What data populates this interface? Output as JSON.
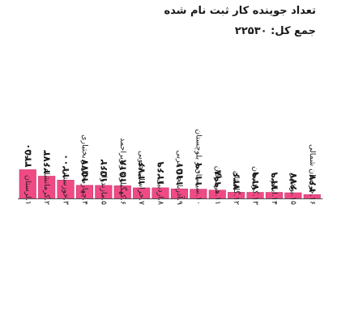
{
  "chart_data": {
    "type": "bar",
    "title": "تعداد جوینده کار ثبت نام شده",
    "subtitle": "جمع کل: ۲۲۵۳۰",
    "categories": [
      "۱.لرستان",
      "۲.کرمانشاه",
      "۳.خوزستان",
      "۴.چهارمحال و بختیاری",
      "۵.مازندران",
      "۶.کهگیلویه وبویراحمد",
      "۷.خراسان جنوبی",
      "۸.اردبیل",
      "۹.آذربایجان غربی",
      "۱۰.سیستان و بلوچستان",
      "۱۱.هرمزگان",
      "۱۲.گلستان",
      "۱۳.کردستان",
      "۱۴.ایلام",
      "۱۵.بوشهر",
      "۱۶.خراسان شمالی"
    ],
    "values": [
      3450,
      2673,
      2200,
      1577,
      1562,
      1518,
      1276,
      1269,
      1151,
      1109,
      998,
      736,
      729,
      729,
      677,
      467
    ],
    "value_labels": [
      "۳۴۵۰",
      "۲۶۷۳",
      "۲۲۰۰",
      "۱۵۷۷",
      "۱۵۶۲",
      "۱۵۱۸",
      "۱۲۷۶",
      "۱۲۶۹",
      "۱۱۵۱",
      "۱۱۰۹",
      "۹۹۸",
      "۷۳۶",
      "۷۲۹",
      "۷۲۹",
      "۶۷۷",
      "۴۶۷"
    ],
    "ylim": [
      0,
      3500
    ],
    "grid": false,
    "legend": "none",
    "bar_color": "#f04a86"
  }
}
